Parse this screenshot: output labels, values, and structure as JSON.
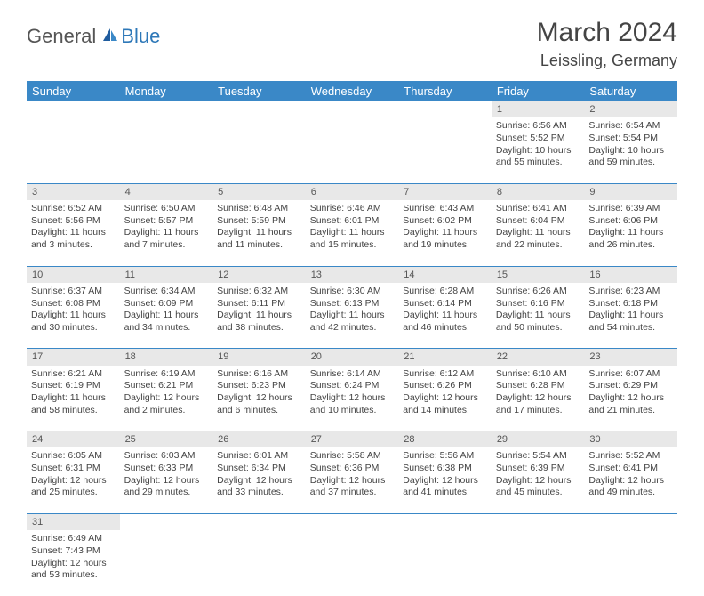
{
  "logo": {
    "general": "General",
    "blue": "Blue"
  },
  "title": "March 2024",
  "location": "Leissling, Germany",
  "colors": {
    "header_bg": "#3a88c7",
    "header_fg": "#ffffff",
    "daynum_bg": "#e8e8e8",
    "border": "#3a88c7",
    "logo_blue": "#2e78b8",
    "text": "#444444"
  },
  "weekdays": [
    "Sunday",
    "Monday",
    "Tuesday",
    "Wednesday",
    "Thursday",
    "Friday",
    "Saturday"
  ],
  "weeks": [
    {
      "nums": [
        "",
        "",
        "",
        "",
        "",
        "1",
        "2"
      ],
      "cells": [
        null,
        null,
        null,
        null,
        null,
        {
          "sunrise": "Sunrise: 6:56 AM",
          "sunset": "Sunset: 5:52 PM",
          "day1": "Daylight: 10 hours",
          "day2": "and 55 minutes."
        },
        {
          "sunrise": "Sunrise: 6:54 AM",
          "sunset": "Sunset: 5:54 PM",
          "day1": "Daylight: 10 hours",
          "day2": "and 59 minutes."
        }
      ]
    },
    {
      "nums": [
        "3",
        "4",
        "5",
        "6",
        "7",
        "8",
        "9"
      ],
      "cells": [
        {
          "sunrise": "Sunrise: 6:52 AM",
          "sunset": "Sunset: 5:56 PM",
          "day1": "Daylight: 11 hours",
          "day2": "and 3 minutes."
        },
        {
          "sunrise": "Sunrise: 6:50 AM",
          "sunset": "Sunset: 5:57 PM",
          "day1": "Daylight: 11 hours",
          "day2": "and 7 minutes."
        },
        {
          "sunrise": "Sunrise: 6:48 AM",
          "sunset": "Sunset: 5:59 PM",
          "day1": "Daylight: 11 hours",
          "day2": "and 11 minutes."
        },
        {
          "sunrise": "Sunrise: 6:46 AM",
          "sunset": "Sunset: 6:01 PM",
          "day1": "Daylight: 11 hours",
          "day2": "and 15 minutes."
        },
        {
          "sunrise": "Sunrise: 6:43 AM",
          "sunset": "Sunset: 6:02 PM",
          "day1": "Daylight: 11 hours",
          "day2": "and 19 minutes."
        },
        {
          "sunrise": "Sunrise: 6:41 AM",
          "sunset": "Sunset: 6:04 PM",
          "day1": "Daylight: 11 hours",
          "day2": "and 22 minutes."
        },
        {
          "sunrise": "Sunrise: 6:39 AM",
          "sunset": "Sunset: 6:06 PM",
          "day1": "Daylight: 11 hours",
          "day2": "and 26 minutes."
        }
      ]
    },
    {
      "nums": [
        "10",
        "11",
        "12",
        "13",
        "14",
        "15",
        "16"
      ],
      "cells": [
        {
          "sunrise": "Sunrise: 6:37 AM",
          "sunset": "Sunset: 6:08 PM",
          "day1": "Daylight: 11 hours",
          "day2": "and 30 minutes."
        },
        {
          "sunrise": "Sunrise: 6:34 AM",
          "sunset": "Sunset: 6:09 PM",
          "day1": "Daylight: 11 hours",
          "day2": "and 34 minutes."
        },
        {
          "sunrise": "Sunrise: 6:32 AM",
          "sunset": "Sunset: 6:11 PM",
          "day1": "Daylight: 11 hours",
          "day2": "and 38 minutes."
        },
        {
          "sunrise": "Sunrise: 6:30 AM",
          "sunset": "Sunset: 6:13 PM",
          "day1": "Daylight: 11 hours",
          "day2": "and 42 minutes."
        },
        {
          "sunrise": "Sunrise: 6:28 AM",
          "sunset": "Sunset: 6:14 PM",
          "day1": "Daylight: 11 hours",
          "day2": "and 46 minutes."
        },
        {
          "sunrise": "Sunrise: 6:26 AM",
          "sunset": "Sunset: 6:16 PM",
          "day1": "Daylight: 11 hours",
          "day2": "and 50 minutes."
        },
        {
          "sunrise": "Sunrise: 6:23 AM",
          "sunset": "Sunset: 6:18 PM",
          "day1": "Daylight: 11 hours",
          "day2": "and 54 minutes."
        }
      ]
    },
    {
      "nums": [
        "17",
        "18",
        "19",
        "20",
        "21",
        "22",
        "23"
      ],
      "cells": [
        {
          "sunrise": "Sunrise: 6:21 AM",
          "sunset": "Sunset: 6:19 PM",
          "day1": "Daylight: 11 hours",
          "day2": "and 58 minutes."
        },
        {
          "sunrise": "Sunrise: 6:19 AM",
          "sunset": "Sunset: 6:21 PM",
          "day1": "Daylight: 12 hours",
          "day2": "and 2 minutes."
        },
        {
          "sunrise": "Sunrise: 6:16 AM",
          "sunset": "Sunset: 6:23 PM",
          "day1": "Daylight: 12 hours",
          "day2": "and 6 minutes."
        },
        {
          "sunrise": "Sunrise: 6:14 AM",
          "sunset": "Sunset: 6:24 PM",
          "day1": "Daylight: 12 hours",
          "day2": "and 10 minutes."
        },
        {
          "sunrise": "Sunrise: 6:12 AM",
          "sunset": "Sunset: 6:26 PM",
          "day1": "Daylight: 12 hours",
          "day2": "and 14 minutes."
        },
        {
          "sunrise": "Sunrise: 6:10 AM",
          "sunset": "Sunset: 6:28 PM",
          "day1": "Daylight: 12 hours",
          "day2": "and 17 minutes."
        },
        {
          "sunrise": "Sunrise: 6:07 AM",
          "sunset": "Sunset: 6:29 PM",
          "day1": "Daylight: 12 hours",
          "day2": "and 21 minutes."
        }
      ]
    },
    {
      "nums": [
        "24",
        "25",
        "26",
        "27",
        "28",
        "29",
        "30"
      ],
      "cells": [
        {
          "sunrise": "Sunrise: 6:05 AM",
          "sunset": "Sunset: 6:31 PM",
          "day1": "Daylight: 12 hours",
          "day2": "and 25 minutes."
        },
        {
          "sunrise": "Sunrise: 6:03 AM",
          "sunset": "Sunset: 6:33 PM",
          "day1": "Daylight: 12 hours",
          "day2": "and 29 minutes."
        },
        {
          "sunrise": "Sunrise: 6:01 AM",
          "sunset": "Sunset: 6:34 PM",
          "day1": "Daylight: 12 hours",
          "day2": "and 33 minutes."
        },
        {
          "sunrise": "Sunrise: 5:58 AM",
          "sunset": "Sunset: 6:36 PM",
          "day1": "Daylight: 12 hours",
          "day2": "and 37 minutes."
        },
        {
          "sunrise": "Sunrise: 5:56 AM",
          "sunset": "Sunset: 6:38 PM",
          "day1": "Daylight: 12 hours",
          "day2": "and 41 minutes."
        },
        {
          "sunrise": "Sunrise: 5:54 AM",
          "sunset": "Sunset: 6:39 PM",
          "day1": "Daylight: 12 hours",
          "day2": "and 45 minutes."
        },
        {
          "sunrise": "Sunrise: 5:52 AM",
          "sunset": "Sunset: 6:41 PM",
          "day1": "Daylight: 12 hours",
          "day2": "and 49 minutes."
        }
      ]
    },
    {
      "nums": [
        "31",
        "",
        "",
        "",
        "",
        "",
        ""
      ],
      "cells": [
        {
          "sunrise": "Sunrise: 6:49 AM",
          "sunset": "Sunset: 7:43 PM",
          "day1": "Daylight: 12 hours",
          "day2": "and 53 minutes."
        },
        null,
        null,
        null,
        null,
        null,
        null
      ]
    }
  ]
}
